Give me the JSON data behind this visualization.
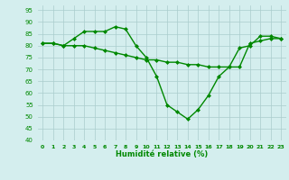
{
  "x": [
    0,
    1,
    2,
    3,
    4,
    5,
    6,
    7,
    8,
    9,
    10,
    11,
    12,
    13,
    14,
    15,
    16,
    17,
    18,
    19,
    20,
    21,
    22,
    23
  ],
  "line1": [
    81,
    81,
    80,
    83,
    86,
    86,
    86,
    88,
    87,
    80,
    75,
    67,
    55,
    52,
    49,
    53,
    59,
    67,
    71,
    79,
    80,
    84,
    84,
    83
  ],
  "line2": [
    81,
    81,
    80,
    80,
    80,
    79,
    78,
    77,
    76,
    75,
    74,
    74,
    73,
    73,
    72,
    72,
    71,
    71,
    71,
    71,
    81,
    82,
    83,
    83
  ],
  "xlim": [
    -0.5,
    23.5
  ],
  "ylim": [
    40,
    97
  ],
  "yticks": [
    40,
    45,
    50,
    55,
    60,
    65,
    70,
    75,
    80,
    85,
    90,
    95
  ],
  "xticks": [
    0,
    1,
    2,
    3,
    4,
    5,
    6,
    7,
    8,
    9,
    10,
    11,
    12,
    13,
    14,
    15,
    16,
    17,
    18,
    19,
    20,
    21,
    22,
    23
  ],
  "xlabel": "Humidité relative (%)",
  "line_color": "#008800",
  "bg_color": "#d4eeee",
  "grid_color": "#aacccc",
  "marker": "D",
  "markersize": 2.0,
  "linewidth": 1.0
}
